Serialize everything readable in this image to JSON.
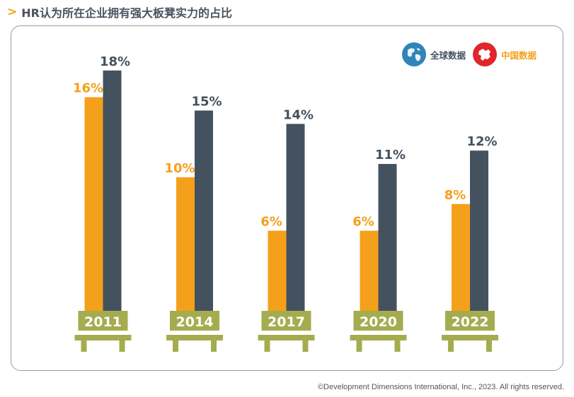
{
  "title": "HR认为所在企业拥有强大板凳实力的占比",
  "legend": {
    "global_label": "全球数据",
    "china_label": "中国数据",
    "global_icon": "globe-icon",
    "china_icon": "china-map-icon"
  },
  "colors": {
    "china": "#f5a01a",
    "global": "#44525f",
    "bench": "#a5ac4f",
    "title_chevron": "#f5a01a"
  },
  "chart_data": {
    "type": "bar",
    "categories": [
      "2011",
      "2014",
      "2017",
      "2020",
      "2022"
    ],
    "series": [
      {
        "name": "中国数据",
        "values": [
          16,
          10,
          6,
          6,
          8
        ],
        "labels": [
          "16%",
          "10%",
          "6%",
          "6%",
          "8%"
        ]
      },
      {
        "name": "全球数据",
        "values": [
          18,
          15,
          14,
          11,
          12
        ],
        "labels": [
          "18%",
          "15%",
          "14%",
          "11%",
          "12%"
        ]
      }
    ],
    "ylim": [
      0,
      20
    ],
    "grid": false,
    "legend_position": "top-right"
  },
  "footer": {
    "copyright": "©Development Dimensions International, Inc., 2023. All rights reserved."
  }
}
